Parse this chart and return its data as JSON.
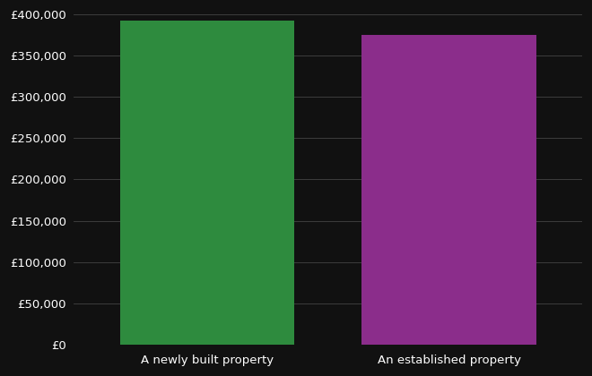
{
  "categories": [
    "A newly built property",
    "An established property"
  ],
  "values": [
    392000,
    375000
  ],
  "bar_colors": [
    "#2e8b3e",
    "#8b2d8b"
  ],
  "background_color": "#111111",
  "text_color": "#ffffff",
  "grid_color": "#444444",
  "ylim": [
    0,
    400000
  ],
  "yticks": [
    0,
    50000,
    100000,
    150000,
    200000,
    250000,
    300000,
    350000,
    400000
  ],
  "x_positions": [
    1,
    2
  ],
  "bar_width": 0.72,
  "xlim": [
    0.45,
    2.55
  ],
  "figsize": [
    6.6,
    4.2
  ],
  "dpi": 100
}
